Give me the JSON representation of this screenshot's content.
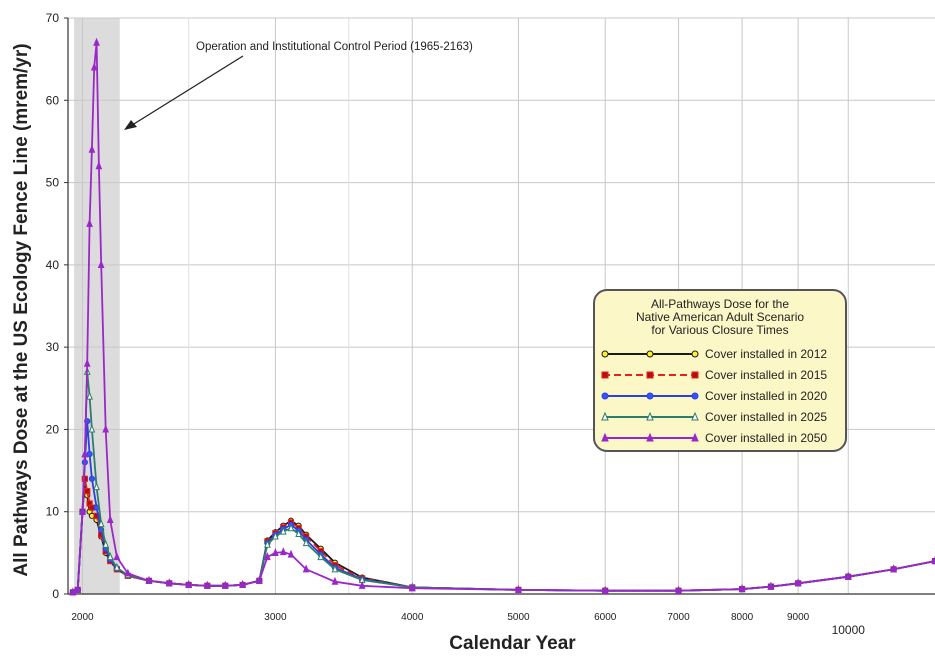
{
  "chart_data": {
    "type": "line",
    "ylabel": "All Pathways Dose at the US Ecology Fence Line (mrem/yr)",
    "xlabel": "Calendar Year",
    "ylim": [
      0,
      70
    ],
    "yticks": [
      0,
      10,
      20,
      30,
      40,
      50,
      60,
      70
    ],
    "xscale": "log",
    "xticks": [
      2000,
      3000,
      4000,
      5000,
      6000,
      7000,
      8000,
      9000,
      10000
    ],
    "grid": true,
    "shaded_region": {
      "start": 1965,
      "end": 2163
    },
    "annotation": "Operation and Institutional Control Period (1965-2163)",
    "legend": {
      "title": [
        "All-Pathways Dose for the",
        "Native American Adult Scenario",
        "for Various Closure Times"
      ],
      "placement": "right"
    },
    "series": [
      {
        "name": "Cover installed in 2012",
        "color": "#1a1a1a",
        "marker": "circle",
        "marker_fill": "#ffee33",
        "dash": "solid",
        "x": [
          1960,
          1980,
          2000,
          2010,
          2020,
          2030,
          2040,
          2060,
          2080,
          2100,
          2120,
          2150,
          2200,
          2300,
          2400,
          2500,
          2600,
          2700,
          2800,
          2900,
          2950,
          3000,
          3050,
          3100,
          3150,
          3200,
          3300,
          3400,
          3600,
          4000,
          5000,
          6000,
          7000,
          8000,
          8500,
          9000,
          10000,
          11000,
          12000
        ],
        "y": [
          0.2,
          0.5,
          10,
          14,
          12,
          10,
          9.5,
          9,
          7,
          5,
          4,
          3,
          2.2,
          1.6,
          1.3,
          1.1,
          1.0,
          1.0,
          1.1,
          1.6,
          6.5,
          7.5,
          8.3,
          8.9,
          8.3,
          7.2,
          5.5,
          3.8,
          2.0,
          0.8,
          0.5,
          0.4,
          0.4,
          0.6,
          0.9,
          1.3,
          2.1,
          3.0,
          4.0
        ]
      },
      {
        "name": "Cover installed in 2015",
        "color": "#e8211b",
        "marker": "square",
        "marker_fill": "#b01010",
        "dash": "dashed",
        "x": [
          1960,
          1980,
          2000,
          2010,
          2020,
          2030,
          2040,
          2060,
          2080,
          2100,
          2120,
          2150,
          2200,
          2300,
          2400,
          2500,
          2600,
          2700,
          2800,
          2900,
          2950,
          3000,
          3050,
          3100,
          3150,
          3200,
          3300,
          3400,
          3600,
          4000,
          5000,
          6000,
          7000,
          8000,
          8500,
          9000,
          10000,
          11000,
          12000
        ],
        "y": [
          0.2,
          0.5,
          10,
          14,
          12.5,
          11,
          10.5,
          9.5,
          7.2,
          5.2,
          4,
          3,
          2.2,
          1.6,
          1.3,
          1.1,
          1.0,
          1.0,
          1.1,
          1.6,
          6.4,
          7.4,
          8.1,
          8.7,
          8.0,
          7.0,
          5.2,
          3.5,
          1.9,
          0.8,
          0.5,
          0.4,
          0.4,
          0.6,
          0.9,
          1.3,
          2.1,
          3.0,
          4.0
        ]
      },
      {
        "name": "Cover installed in 2020",
        "color": "#2c3fe0",
        "marker": "circle",
        "marker_fill": "#3355ff",
        "dash": "solid",
        "x": [
          1960,
          1980,
          2000,
          2010,
          2020,
          2030,
          2040,
          2060,
          2080,
          2100,
          2120,
          2150,
          2200,
          2300,
          2400,
          2500,
          2600,
          2700,
          2800,
          2900,
          2950,
          3000,
          3050,
          3100,
          3150,
          3200,
          3300,
          3400,
          3600,
          4000,
          5000,
          6000,
          7000,
          8000,
          8500,
          9000,
          10000,
          11000,
          12000
        ],
        "y": [
          0.2,
          0.5,
          10,
          16,
          21,
          17,
          14,
          10.5,
          7.8,
          5.5,
          4.2,
          3.1,
          2.3,
          1.6,
          1.3,
          1.1,
          1.0,
          1.0,
          1.1,
          1.6,
          6.2,
          7.2,
          7.9,
          8.4,
          7.7,
          6.6,
          4.8,
          3.2,
          1.8,
          0.8,
          0.5,
          0.4,
          0.4,
          0.6,
          0.9,
          1.3,
          2.1,
          3.0,
          4.0
        ]
      },
      {
        "name": "Cover installed in 2025",
        "color": "#2e7d6a",
        "marker": "triangle",
        "marker_fill": "#ffffff",
        "dash": "solid",
        "x": [
          1960,
          1980,
          2000,
          2010,
          2020,
          2030,
          2040,
          2060,
          2080,
          2100,
          2120,
          2150,
          2200,
          2300,
          2400,
          2500,
          2600,
          2700,
          2800,
          2900,
          2950,
          3000,
          3050,
          3100,
          3150,
          3200,
          3300,
          3400,
          3600,
          4000,
          5000,
          6000,
          7000,
          8000,
          8500,
          9000,
          10000,
          11000,
          12000
        ],
        "y": [
          0.2,
          0.5,
          10,
          17,
          27,
          24,
          20,
          13,
          8.5,
          6,
          4.5,
          3.2,
          2.3,
          1.6,
          1.3,
          1.1,
          1.0,
          1.0,
          1.1,
          1.6,
          6.0,
          7.0,
          7.6,
          8.0,
          7.3,
          6.2,
          4.5,
          3.0,
          1.7,
          0.8,
          0.5,
          0.4,
          0.4,
          0.6,
          0.9,
          1.3,
          2.1,
          3.0,
          4.0
        ]
      },
      {
        "name": "Cover installed in 2050",
        "color": "#9b27c9",
        "marker": "triangle",
        "marker_fill": "#9b27c9",
        "dash": "solid",
        "x": [
          1960,
          1980,
          2000,
          2010,
          2020,
          2030,
          2040,
          2050,
          2060,
          2070,
          2080,
          2100,
          2120,
          2150,
          2200,
          2300,
          2400,
          2500,
          2600,
          2700,
          2800,
          2900,
          2950,
          3000,
          3050,
          3100,
          3200,
          3400,
          3600,
          4000,
          5000,
          6000,
          7000,
          8000,
          8500,
          9000,
          10000,
          11000,
          12000
        ],
        "y": [
          0.2,
          0.5,
          10,
          17,
          28,
          45,
          54,
          64,
          67,
          52,
          40,
          20,
          9,
          4.5,
          2.5,
          1.6,
          1.3,
          1.1,
          1.0,
          1.0,
          1.1,
          1.6,
          4.5,
          5.0,
          5.1,
          4.8,
          3.0,
          1.5,
          1.0,
          0.7,
          0.5,
          0.4,
          0.4,
          0.6,
          0.9,
          1.3,
          2.1,
          3.0,
          4.0
        ]
      }
    ]
  }
}
